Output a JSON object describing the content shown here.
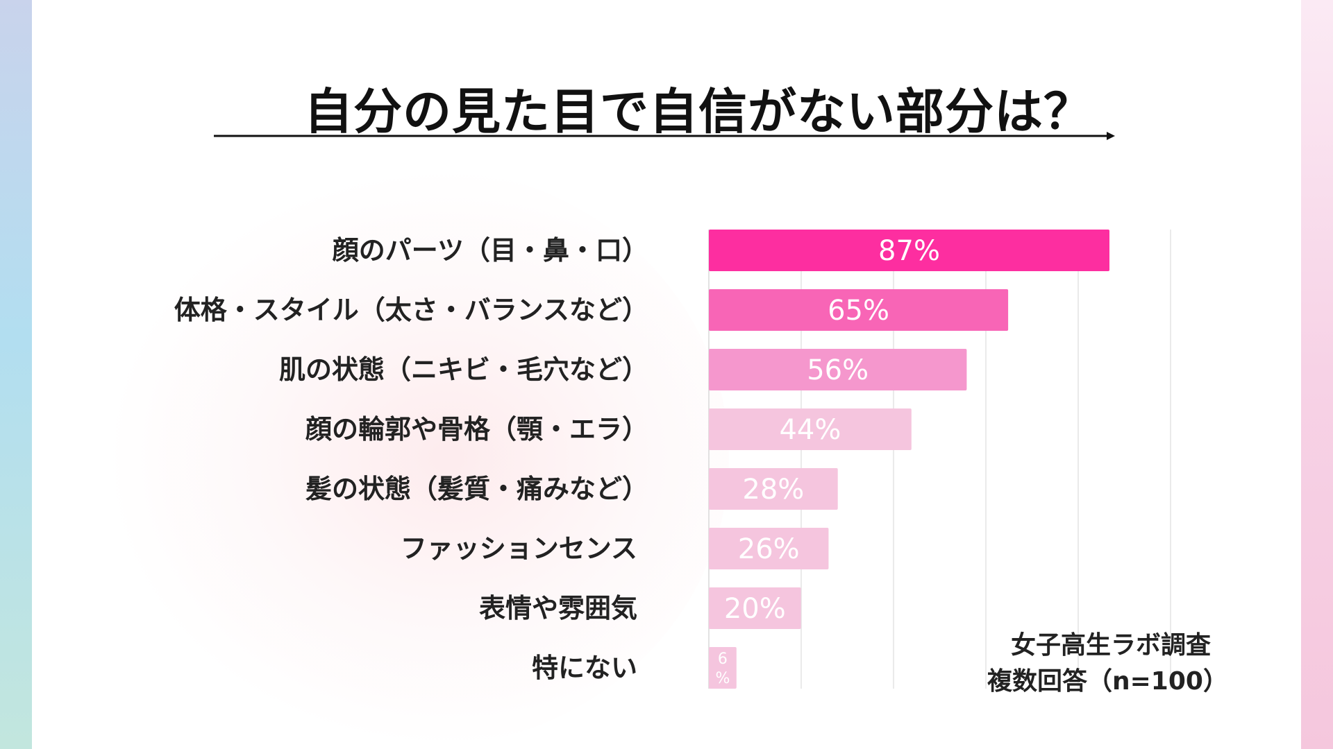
{
  "title": "自分の見た目で自信がない部分は？",
  "source": {
    "line1": "女子高生ラボ調査",
    "line2": "複数回答（n=100）"
  },
  "colors": {
    "bar1": "#fd2ea0",
    "bar2": "#f865b6",
    "bar3": "#f597cd",
    "bar_light": "#f5c5de",
    "grid": "#e4e4e4",
    "title_text": "#111111"
  },
  "chart_data": {
    "type": "bar",
    "orientation": "horizontal",
    "title": "自分の見た目で自信がない部分は？",
    "xlabel": "",
    "ylabel": "",
    "xlim": [
      0,
      100
    ],
    "grid": true,
    "categories": [
      "顔のパーツ（目・鼻・口）",
      "体格・スタイル（太さ・バランスなど）",
      "肌の状態（ニキビ・毛穴など）",
      "顔の輪郭や骨格（顎・エラ）",
      "髪の状態（髪質・痛みなど）",
      "ファッションセンス",
      "表情や雰囲気",
      "特にない"
    ],
    "values": [
      87,
      65,
      56,
      44,
      28,
      26,
      20,
      6
    ],
    "value_labels": [
      "87%",
      "65%",
      "56%",
      "44%",
      "28%",
      "26%",
      "20%",
      "6%"
    ]
  }
}
